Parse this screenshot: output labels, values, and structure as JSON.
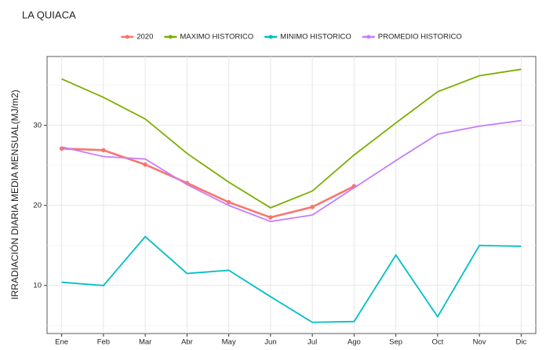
{
  "chart_data": {
    "type": "line",
    "title": "LA QUIACA",
    "y_label": "IRRADIACIÓN DIARIA MEDIA MENSUAL(MJ/m2)",
    "categories": [
      "Ene",
      "Feb",
      "Mar",
      "Abr",
      "May",
      "Jun",
      "Jul",
      "Ago",
      "Sep",
      "Oct",
      "Nov",
      "Dic"
    ],
    "series": [
      {
        "name": "2020",
        "color": "#F8766D",
        "markers": true,
        "values": [
          27.1,
          26.9,
          25.1,
          22.8,
          20.4,
          18.5,
          19.8,
          22.4,
          null,
          null,
          null,
          null
        ]
      },
      {
        "name": "MAXIMO HISTORICO",
        "color": "#7CAE00",
        "values": [
          35.8,
          33.5,
          30.8,
          26.5,
          22.9,
          19.7,
          21.8,
          26.3,
          30.3,
          34.2,
          36.2,
          37.0
        ]
      },
      {
        "name": "MINIMO HISTORICO",
        "color": "#00BFC4",
        "values": [
          10.4,
          10.0,
          16.1,
          11.5,
          11.9,
          8.6,
          5.4,
          5.5,
          13.8,
          6.1,
          15.0,
          14.9
        ]
      },
      {
        "name": "PROMEDIO HISTORICO",
        "color": "#C77CFF",
        "values": [
          27.3,
          26.1,
          25.8,
          22.6,
          20.0,
          18.0,
          18.8,
          22.2,
          25.6,
          28.9,
          29.9,
          30.6
        ]
      }
    ],
    "ylim": [
      4.0,
      38.6
    ],
    "yticks": [
      10,
      20,
      30
    ],
    "grid": true,
    "legend": "top"
  }
}
